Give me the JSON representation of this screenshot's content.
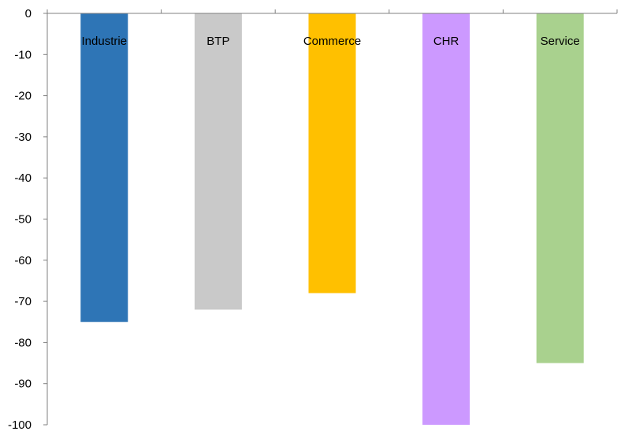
{
  "chart_data": {
    "type": "bar",
    "categories": [
      "Industrie",
      "BTP",
      "Commerce",
      "CHR",
      "Service"
    ],
    "values": [
      -75,
      -72,
      -68,
      -100,
      -85
    ],
    "colors": [
      "#2E75B6",
      "#C9C9C9",
      "#FFC000",
      "#CC99FF",
      "#A9D18E"
    ],
    "title": "",
    "xlabel": "",
    "ylabel": "",
    "ylim": [
      -100,
      0
    ],
    "yticks": [
      0,
      -10,
      -20,
      -30,
      -40,
      -50,
      -60,
      -70,
      -80,
      -90,
      -100
    ],
    "ytick_labels": [
      "0",
      "-10",
      "-20",
      "-30",
      "-40",
      "-50",
      "-60",
      "-70",
      "-80",
      "-90",
      "-100"
    ],
    "grid": false,
    "legend": "none"
  }
}
